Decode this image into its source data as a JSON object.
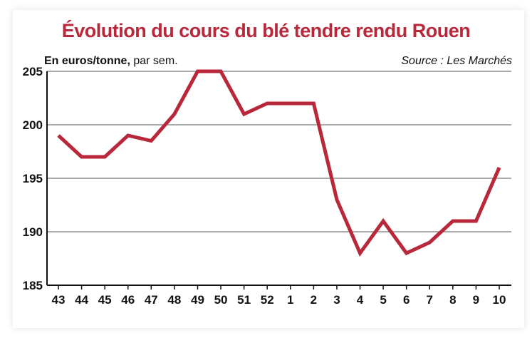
{
  "chart_data": {
    "type": "line",
    "title": "Évolution du cours du blé tendre rendu Rouen",
    "ylabel_bold": "En euros/tonne,",
    "ylabel_rest": " par sem.",
    "source": "Source : Les Marchés",
    "categories": [
      "43",
      "44",
      "45",
      "46",
      "47",
      "48",
      "49",
      "50",
      "51",
      "52",
      "1",
      "2",
      "3",
      "4",
      "5",
      "6",
      "7",
      "8",
      "9",
      "10"
    ],
    "series": [
      {
        "values": [
          199,
          197,
          197,
          199,
          198.5,
          201,
          205,
          205,
          201,
          202,
          202,
          202,
          193,
          188,
          191,
          188,
          189,
          191,
          191,
          196
        ]
      }
    ],
    "yticks": [
      "185",
      "190",
      "195",
      "200",
      "205"
    ],
    "ylim": [
      185,
      205
    ],
    "grid": true,
    "line_color": "#b8273a"
  }
}
